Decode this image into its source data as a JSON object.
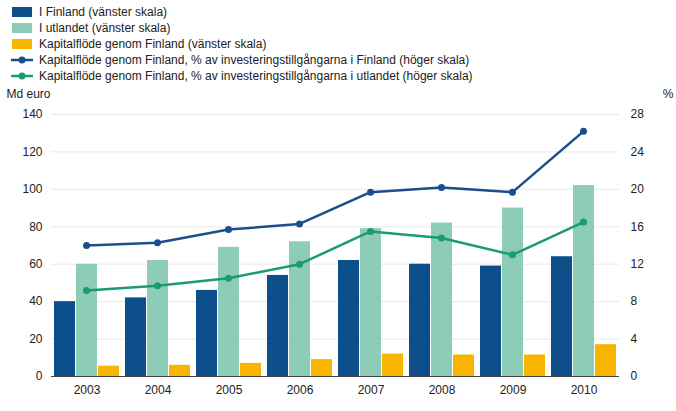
{
  "chart_data": {
    "type": "bar",
    "categories": [
      "2003",
      "2004",
      "2005",
      "2006",
      "2007",
      "2008",
      "2009",
      "2010"
    ],
    "y_label": "Md euro",
    "y2_label": "%",
    "ylim": [
      0,
      140
    ],
    "yticks": [
      0,
      20,
      40,
      60,
      80,
      100,
      120,
      140
    ],
    "y2lim": [
      0,
      28
    ],
    "y2ticks": [
      0,
      4,
      8,
      12,
      16,
      20,
      24,
      28
    ],
    "grid": true,
    "legend": "top-left",
    "series": [
      {
        "name": "I Finland (vänster skala)",
        "type": "bar",
        "color": "#0d4f8b",
        "values": [
          40,
          42,
          46,
          54,
          62,
          60,
          59,
          64
        ]
      },
      {
        "name": "I utlandet (vänster skala)",
        "type": "bar",
        "color": "#8dcdb8",
        "values": [
          60,
          62,
          69,
          72,
          79,
          82,
          90,
          102
        ]
      },
      {
        "name": "Kapitalflöde genom Finland (vänster skala)",
        "type": "bar",
        "color": "#f7b500",
        "values": [
          5.5,
          6,
          7,
          9,
          12,
          11.5,
          11.5,
          17
        ]
      },
      {
        "name": "Kapitalflöde genom Finland, % av investeringstillgångarna i Finland (höger skala)",
        "type": "line",
        "axis": "y2",
        "color": "#1a4e8c",
        "marker": "circle",
        "values": [
          14,
          14.3,
          15.7,
          16.3,
          19.7,
          20.2,
          19.7,
          26.2
        ]
      },
      {
        "name": "Kapitalflöde genom Finland, % av investeringstillgångarna i utlandet (höger skala)",
        "type": "line",
        "axis": "y2",
        "color": "#1a9a78",
        "marker": "circle",
        "values": [
          9.2,
          9.7,
          10.5,
          12,
          15.5,
          14.8,
          13,
          16.5
        ]
      }
    ]
  }
}
